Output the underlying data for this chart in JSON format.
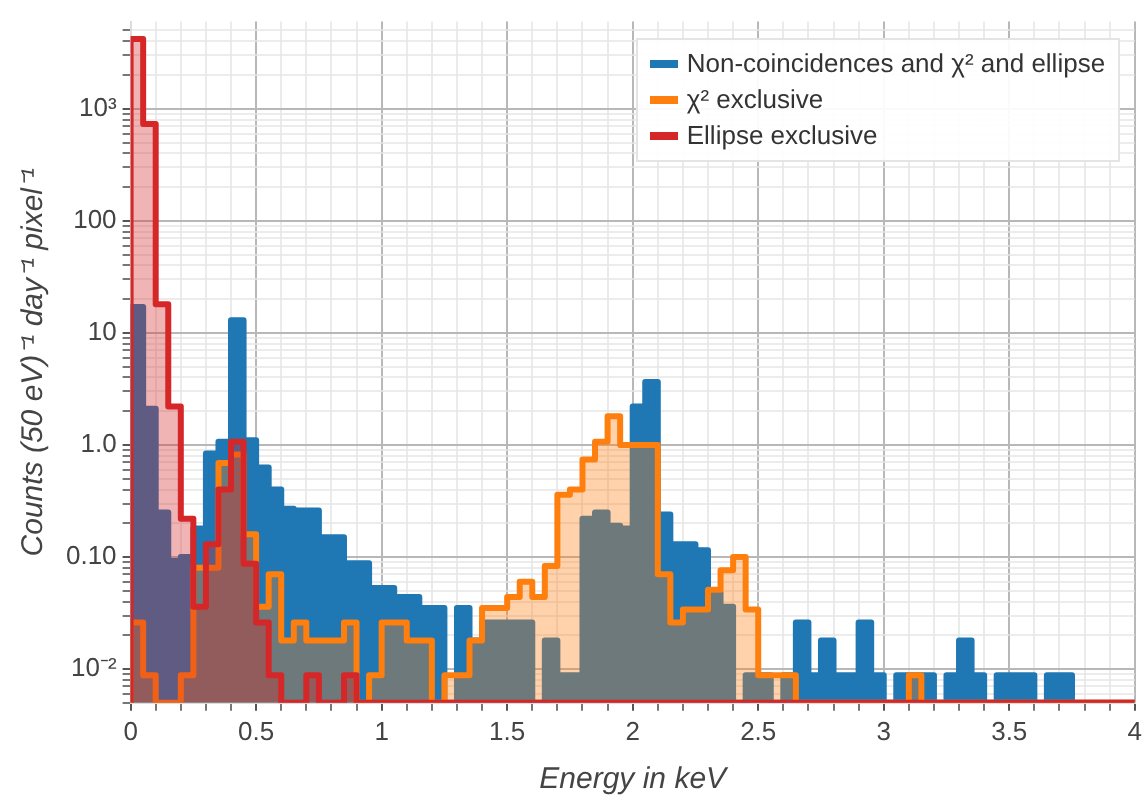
{
  "chart_data": {
    "type": "histogram",
    "xlabel": "Energy in keV",
    "ylabel": "Counts (50 eV)⁻¹ day⁻¹ pixel⁻¹",
    "bins": [
      0,
      0.05,
      0.1,
      0.15,
      0.2,
      0.25,
      0.3,
      0.35,
      0.4,
      0.45,
      0.5,
      0.55,
      0.6,
      0.65,
      0.7,
      0.75,
      0.8,
      0.85,
      0.9,
      0.95,
      1,
      1.05,
      1.1,
      1.15,
      1.2,
      1.25,
      1.3,
      1.35,
      1.4,
      1.45,
      1.5,
      1.55,
      1.6,
      1.65,
      1.7,
      1.75,
      1.8,
      1.85,
      1.9,
      1.95,
      2,
      2.05,
      2.1,
      2.15,
      2.2,
      2.25,
      2.3,
      2.35,
      2.4,
      2.45,
      2.5,
      2.55,
      2.6,
      2.65,
      2.7,
      2.75,
      2.8,
      2.85,
      2.9,
      2.95,
      3,
      3.05,
      3.1,
      3.15,
      3.2,
      3.25,
      3.3,
      3.35,
      3.4,
      3.45,
      3.5,
      3.55,
      3.6,
      3.65,
      3.7,
      3.75,
      3.8,
      3.85,
      3.9,
      3.95,
      4
    ],
    "series": [
      {
        "name": "Non-coincidences and χ² and ellipse",
        "color": "#1f77b4",
        "values": [
          17,
          2.1,
          0.25,
          0.092,
          0.1,
          0.18,
          0.84,
          1.07,
          13,
          1.1,
          0.63,
          0.4,
          0.27,
          0.26,
          0.26,
          0.15,
          0.15,
          0.088,
          0.088,
          0.053,
          0.053,
          0.044,
          0.044,
          0.035,
          0.035,
          null,
          0.035,
          0.018,
          0.026,
          0.026,
          0.026,
          0.026,
          null,
          0.018,
          0.0088,
          0.0088,
          0.22,
          0.25,
          0.19,
          0.18,
          2.2,
          3.65,
          0.24,
          0.13,
          0.13,
          0.115,
          0.048,
          0.036,
          null,
          0.0088,
          0.0088,
          null,
          0.0088,
          0.026,
          0.0088,
          0.018,
          0.0088,
          0.0088,
          0.026,
          0.0088,
          null,
          0.0088,
          0.0088,
          0.0088,
          null,
          0.0088,
          0.018,
          0.0088,
          null,
          0.0088,
          0.0088,
          0.0088,
          null,
          0.0088,
          0.0088,
          null,
          null,
          null,
          null,
          null
        ]
      },
      {
        "name": "χ² exclusive",
        "color": "#ff7f0e",
        "values": [
          0.026,
          0.0088,
          null,
          null,
          0.0088,
          0.08,
          0.08,
          0.69,
          0.82,
          0.16,
          0.036,
          0.07,
          0.018,
          0.026,
          0.018,
          0.018,
          0.018,
          0.026,
          null,
          0.0088,
          0.026,
          0.026,
          0.018,
          0.018,
          null,
          0.0088,
          0.0088,
          0.018,
          0.035,
          0.035,
          0.044,
          0.06,
          0.044,
          0.083,
          0.36,
          0.4,
          0.74,
          1.07,
          1.8,
          1.0,
          1.0,
          1.0,
          0.07,
          0.026,
          0.034,
          0.034,
          0.051,
          0.076,
          0.1,
          0.034,
          0.0088,
          0.0088,
          0.0088,
          null,
          null,
          null,
          null,
          null,
          null,
          null,
          null,
          null,
          0.0088,
          null,
          null,
          null,
          null,
          null,
          null,
          null,
          null,
          null,
          null,
          null,
          null,
          null,
          null,
          null,
          null,
          null
        ]
      },
      {
        "name": "Ellipse exclusive",
        "color": "#d62728",
        "values": [
          4200,
          730,
          18,
          2.2,
          0.22,
          0.036,
          0.13,
          0.4,
          1.07,
          0.087,
          0.026,
          0.0088,
          null,
          null,
          0.0088,
          null,
          null,
          0.0088,
          null,
          null,
          null,
          null,
          null,
          null,
          null,
          null,
          null,
          null,
          null,
          null,
          null,
          null,
          null,
          null,
          null,
          null,
          null,
          null,
          null,
          null,
          null,
          null,
          null,
          null,
          null,
          null,
          null,
          null,
          null,
          null,
          null,
          null,
          null,
          null,
          null,
          null,
          null,
          null,
          null,
          null,
          null,
          null,
          null,
          null,
          null,
          null,
          null,
          null,
          null,
          null,
          null,
          null,
          null,
          null,
          null,
          null,
          null,
          null,
          null,
          null
        ]
      }
    ],
    "xlim": [
      0,
      4
    ],
    "xticks": [
      0,
      {
        "value": 0.1,
        "label": null
      },
      {
        "value": 0.2,
        "label": null
      },
      {
        "value": 0.3,
        "label": null
      },
      {
        "value": 0.4,
        "label": null
      },
      0.5,
      {
        "value": 0.6,
        "label": null
      },
      {
        "value": 0.7,
        "label": null
      },
      {
        "value": 0.8,
        "label": null
      },
      {
        "value": 0.9,
        "label": null
      },
      1,
      {
        "value": 1.1,
        "label": null
      },
      {
        "value": 1.2,
        "label": null
      },
      {
        "value": 1.3,
        "label": null
      },
      {
        "value": 1.4,
        "label": null
      },
      1.5,
      {
        "value": 1.6,
        "label": null
      },
      {
        "value": 1.7,
        "label": null
      },
      {
        "value": 1.8,
        "label": null
      },
      {
        "value": 1.9,
        "label": null
      },
      2,
      {
        "value": 2.1,
        "label": null
      },
      {
        "value": 2.2,
        "label": null
      },
      {
        "value": 2.3,
        "label": null
      },
      {
        "value": 2.4,
        "label": null
      },
      2.5,
      {
        "value": 2.6,
        "label": null
      },
      {
        "value": 2.7,
        "label": null
      },
      {
        "value": 2.8,
        "label": null
      },
      {
        "value": 2.9,
        "label": null
      },
      3,
      {
        "value": 3.1,
        "label": null
      },
      {
        "value": 3.2,
        "label": null
      },
      {
        "value": 3.3,
        "label": null
      },
      {
        "value": 3.4,
        "label": null
      },
      3.5,
      {
        "value": 3.6,
        "label": null
      },
      {
        "value": 3.7,
        "label": null
      },
      {
        "value": 3.8,
        "label": null
      },
      {
        "value": 3.9,
        "label": null
      },
      4
    ],
    "ylim": [
      0.005,
      6000
    ],
    "yticks": [
      {
        "value": 0.005,
        "label": null
      },
      {
        "value": 0.006,
        "label": null
      },
      {
        "value": 0.007,
        "label": null
      },
      {
        "value": 0.008,
        "label": null
      },
      {
        "value": 0.009,
        "label": null
      },
      {
        "value": 0.01,
        "label": "10⁻²"
      },
      {
        "value": 0.02,
        "label": null
      },
      {
        "value": 0.03,
        "label": null
      },
      {
        "value": 0.04,
        "label": null
      },
      {
        "value": 0.05,
        "label": null
      },
      {
        "value": 0.06,
        "label": null
      },
      {
        "value": 0.07,
        "label": null
      },
      {
        "value": 0.08,
        "label": null
      },
      {
        "value": 0.09,
        "label": null
      },
      {
        "value": 0.1,
        "label": "0.10"
      },
      {
        "value": 0.2,
        "label": null
      },
      {
        "value": 0.3,
        "label": null
      },
      {
        "value": 0.4,
        "label": null
      },
      {
        "value": 0.5,
        "label": null
      },
      {
        "value": 0.6,
        "label": null
      },
      {
        "value": 0.7,
        "label": null
      },
      {
        "value": 0.8,
        "label": null
      },
      {
        "value": 0.9,
        "label": null
      },
      {
        "value": 1,
        "label": "1.0"
      },
      {
        "value": 2,
        "label": null
      },
      {
        "value": 3,
        "label": null
      },
      {
        "value": 4,
        "label": null
      },
      {
        "value": 5,
        "label": null
      },
      {
        "value": 6,
        "label": null
      },
      {
        "value": 7,
        "label": null
      },
      {
        "value": 8,
        "label": null
      },
      {
        "value": 9,
        "label": null
      },
      10,
      {
        "value": 20,
        "label": null
      },
      {
        "value": 30,
        "label": null
      },
      {
        "value": 40,
        "label": null
      },
      {
        "value": 50,
        "label": null
      },
      {
        "value": 60,
        "label": null
      },
      {
        "value": 70,
        "label": null
      },
      {
        "value": 80,
        "label": null
      },
      {
        "value": 90,
        "label": null
      },
      100,
      {
        "value": 200,
        "label": null
      },
      {
        "value": 300,
        "label": null
      },
      {
        "value": 400,
        "label": null
      },
      {
        "value": 500,
        "label": null
      },
      {
        "value": 600,
        "label": null
      },
      {
        "value": 700,
        "label": null
      },
      {
        "value": 800,
        "label": null
      },
      {
        "value": 900,
        "label": null
      },
      {
        "value": 1000,
        "label": "10³"
      },
      {
        "value": 2000,
        "label": null
      },
      {
        "value": 3000,
        "label": null
      },
      {
        "value": 4000,
        "label": null
      },
      {
        "value": 5000,
        "label": null
      }
    ],
    "log": "y",
    "grid": true,
    "legend": "top right"
  }
}
